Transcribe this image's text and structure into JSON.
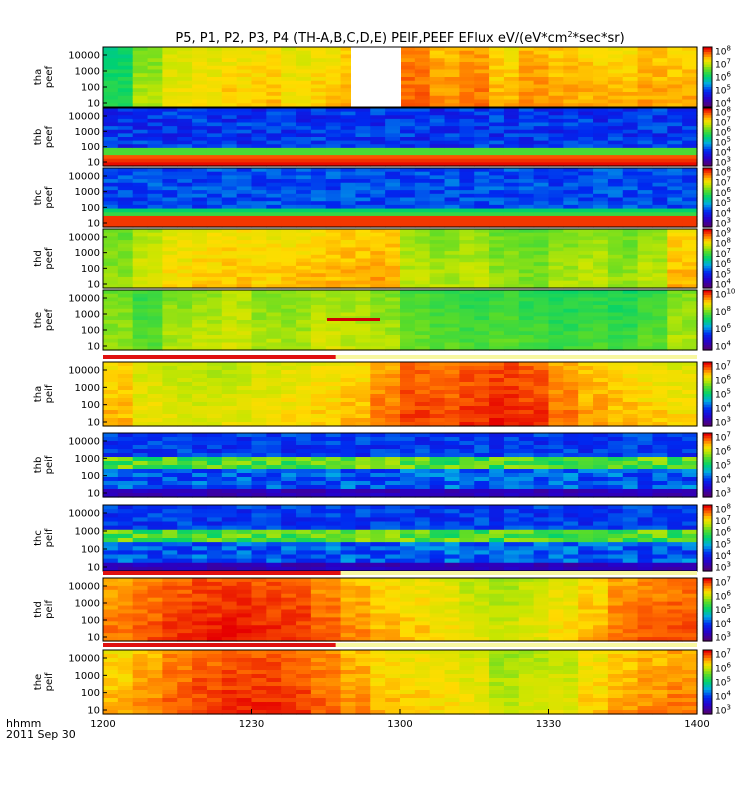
{
  "chart_data": {
    "type": "heatmap",
    "title_parts": [
      "P5, P1, P2, P3, P4 (TH-A,B,C,D,E) PEIF,PEEF EFlux eV/(eV*cm",
      "2",
      "*sec*sr)"
    ],
    "footer": {
      "label": "hhmm",
      "date": "2011 Sep 30"
    },
    "x_ticks": [
      "1200",
      "1230",
      "1300",
      "1330",
      "1400"
    ],
    "xlim_minutes": [
      0,
      120
    ],
    "y_scale": "log",
    "colormap": "rainbow",
    "panels": [
      {
        "ylabel": [
          "tha",
          "peef"
        ],
        "yticks": [
          "10000",
          "1000",
          "100",
          "10"
        ],
        "cbticks": [
          "8",
          "7",
          "6",
          "5",
          "4"
        ],
        "pattern": "smooth",
        "palette": [
          0.55,
          0.7,
          0.78,
          0.8,
          0.82,
          0.83,
          0.8,
          0.82,
          0.85,
          0.9,
          0.92,
          0.88,
          0.9,
          0.84,
          0.88,
          0.86,
          0.85,
          0.84,
          0.86,
          0.85
        ],
        "flag": null
      },
      {
        "ylabel": [
          "thb",
          "peef"
        ],
        "yticks": [
          "10000",
          "1000",
          "100",
          "10"
        ],
        "cbticks": [
          "8",
          "7",
          "6",
          "5",
          "4",
          "3"
        ],
        "pattern": "banded",
        "flag": null
      },
      {
        "ylabel": [
          "thc",
          "peef"
        ],
        "yticks": [
          "10000",
          "1000",
          "100",
          "10"
        ],
        "cbticks": [
          "8",
          "7",
          "6",
          "5",
          "4",
          "3"
        ],
        "pattern": "banded2",
        "flag": null
      },
      {
        "ylabel": [
          "thd",
          "peef"
        ],
        "yticks": [
          "10000",
          "1000",
          "100",
          "10"
        ],
        "cbticks": [
          "9",
          "8",
          "7",
          "6",
          "5",
          "4"
        ],
        "pattern": "smooth",
        "palette": [
          0.68,
          0.75,
          0.8,
          0.82,
          0.83,
          0.82,
          0.83,
          0.84,
          0.85,
          0.86,
          0.72,
          0.7,
          0.72,
          0.68,
          0.66,
          0.7,
          0.72,
          0.68,
          0.72,
          0.84
        ],
        "flag": null
      },
      {
        "ylabel": [
          "the",
          "peef"
        ],
        "yticks": [
          "10000",
          "1000",
          "100",
          "10"
        ],
        "cbticks": [
          "10",
          "8",
          "6",
          "4"
        ],
        "pattern": "smooth",
        "palette": [
          0.68,
          0.62,
          0.7,
          0.72,
          0.74,
          0.7,
          0.7,
          0.74,
          0.72,
          0.7,
          0.64,
          0.62,
          0.6,
          0.62,
          0.6,
          0.58,
          0.6,
          0.58,
          0.62,
          0.7
        ],
        "flag": null
      },
      {
        "ylabel": [
          "tha",
          "peif"
        ],
        "yticks": [
          "10000",
          "1000",
          "100",
          "10"
        ],
        "cbticks": [
          "7",
          "6",
          "5",
          "4",
          "3"
        ],
        "pattern": "smooth",
        "palette": [
          0.84,
          0.78,
          0.76,
          0.75,
          0.76,
          0.78,
          0.8,
          0.82,
          0.84,
          0.9,
          0.95,
          0.94,
          0.96,
          0.98,
          0.96,
          0.9,
          0.86,
          0.84,
          0.82,
          0.8
        ],
        "flag": {
          "from": 0,
          "to": 47
        }
      },
      {
        "ylabel": [
          "thb",
          "peif"
        ],
        "yticks": [
          "10000",
          "1000",
          "100",
          "10"
        ],
        "cbticks": [
          "7",
          "6",
          "5",
          "4",
          "3"
        ],
        "pattern": "banded3",
        "flag": null
      },
      {
        "ylabel": [
          "thc",
          "peif"
        ],
        "yticks": [
          "10000",
          "1000",
          "100",
          "10"
        ],
        "cbticks": [
          "8",
          "7",
          "6",
          "5",
          "4",
          "3"
        ],
        "pattern": "banded3",
        "flag": null
      },
      {
        "ylabel": [
          "thd",
          "peif"
        ],
        "yticks": [
          "10000",
          "1000",
          "100",
          "10"
        ],
        "cbticks": [
          "7",
          "6",
          "5",
          "4",
          "3"
        ],
        "pattern": "smooth",
        "palette": [
          0.9,
          0.93,
          0.96,
          0.98,
          0.99,
          0.97,
          0.96,
          0.92,
          0.88,
          0.84,
          0.82,
          0.8,
          0.76,
          0.74,
          0.76,
          0.8,
          0.84,
          0.9,
          0.92,
          0.94
        ],
        "flag": {
          "from": 0,
          "to": 48
        }
      },
      {
        "ylabel": [
          "the",
          "peif"
        ],
        "yticks": [
          "10000",
          "1000",
          "100",
          "10"
        ],
        "cbticks": [
          "7",
          "6",
          "5",
          "4",
          "3"
        ],
        "pattern": "smooth",
        "palette": [
          0.84,
          0.88,
          0.92,
          0.95,
          0.97,
          0.97,
          0.95,
          0.92,
          0.88,
          0.84,
          0.82,
          0.8,
          0.78,
          0.72,
          0.74,
          0.76,
          0.82,
          0.86,
          0.88,
          0.9
        ],
        "flag": {
          "from": 0,
          "to": 47
        }
      }
    ]
  }
}
